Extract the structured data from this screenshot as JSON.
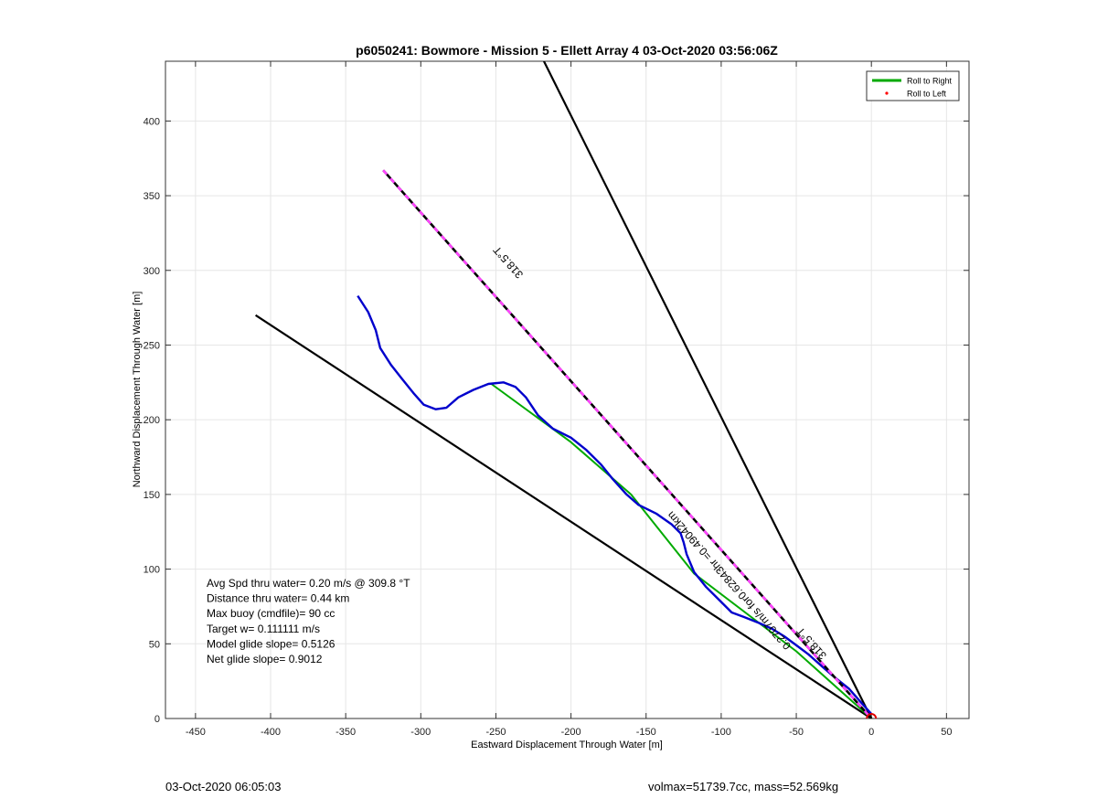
{
  "footer": {
    "date": "03-Oct-2020 06:05:03",
    "mass_info": "volmax=51739.7cc, mass=52.569kg"
  },
  "chart_data": {
    "type": "line",
    "title": "p6050241: Bowmore - Mission 5 - Ellett Array 4 03-Oct-2020 03:56:06Z",
    "xlabel": "Eastward Displacement Through Water [m]",
    "ylabel": "Northward Displacement Through Water [m]",
    "xlim": [
      -470,
      65
    ],
    "ylim": [
      0,
      440
    ],
    "xticks": [
      -450,
      -400,
      -350,
      -300,
      -250,
      -200,
      -150,
      -100,
      -50,
      0,
      50
    ],
    "yticks": [
      0,
      50,
      100,
      150,
      200,
      250,
      300,
      350,
      400
    ],
    "grid": true,
    "legend": {
      "position": "top-right",
      "entries": [
        {
          "label": "Roll to Right",
          "color": "#00aa00",
          "style": "line"
        },
        {
          "label": "Roll to Left",
          "color": "#ff0000",
          "style": "dot"
        }
      ]
    },
    "series": [
      {
        "name": "Roll to Right",
        "color": "#00aa00",
        "points": [
          [
            -253,
            224
          ],
          [
            -200,
            185
          ],
          [
            -160,
            150
          ],
          [
            -118,
            97
          ],
          [
            -50,
            45
          ],
          [
            0,
            0
          ]
        ]
      },
      {
        "color": "#0000cc",
        "points": [
          [
            -342,
            283
          ],
          [
            -335,
            272
          ],
          [
            -330,
            260
          ],
          [
            -327,
            248
          ],
          [
            -320,
            237
          ],
          [
            -313,
            228
          ],
          [
            -305,
            218
          ],
          [
            -298,
            210
          ],
          [
            -290,
            207
          ],
          [
            -283,
            208
          ],
          [
            -275,
            215
          ],
          [
            -265,
            220
          ],
          [
            -255,
            224
          ],
          [
            -245,
            225
          ],
          [
            -237,
            222
          ],
          [
            -230,
            215
          ],
          [
            -222,
            203
          ],
          [
            -212,
            194
          ],
          [
            -200,
            188
          ],
          [
            -190,
            180
          ],
          [
            -180,
            170
          ],
          [
            -172,
            160
          ],
          [
            -163,
            150
          ],
          [
            -155,
            143
          ],
          [
            -143,
            137
          ],
          [
            -133,
            130
          ],
          [
            -127,
            124
          ],
          [
            -125,
            118
          ],
          [
            -123,
            110
          ],
          [
            -118,
            98
          ],
          [
            -110,
            88
          ],
          [
            -100,
            78
          ],
          [
            -93,
            71
          ],
          [
            -85,
            68
          ],
          [
            -75,
            64
          ],
          [
            -66,
            60
          ],
          [
            -58,
            55
          ],
          [
            -50,
            49
          ],
          [
            -42,
            43
          ],
          [
            -33,
            35
          ],
          [
            -25,
            28
          ],
          [
            -15,
            20
          ],
          [
            -8,
            12
          ],
          [
            0,
            3
          ]
        ]
      },
      {
        "color": "#ff44ff",
        "dashed": true,
        "points": [
          [
            -325,
            367
          ],
          [
            0,
            0
          ]
        ]
      },
      {
        "color": "#000000",
        "points": [
          [
            -410,
            270
          ],
          [
            0,
            0
          ]
        ]
      },
      {
        "color": "#000000",
        "points": [
          [
            -218,
            440
          ],
          [
            0,
            0
          ]
        ]
      }
    ],
    "marker": {
      "x": 0,
      "y": 0,
      "color": "#dd0000",
      "shape": "circle"
    },
    "annotations": [
      {
        "text": "318.5°T",
        "x": -240,
        "y": 307,
        "angle": 228.5
      },
      {
        "text": "0.2707m/s for0.62843hr =0.49042km",
        "x": -93,
        "y": 94,
        "angle": 228.5
      },
      {
        "text": "318.5°T",
        "x": -38,
        "y": 52,
        "angle": 228.5
      }
    ],
    "stats": {
      "lines": [
        "Avg Spd thru water=  0.20 m/s @ 309.8 °T",
        "Distance thru water=  0.44 km",
        "Max buoy (cmdfile)= 90 cc",
        "Target w= 0.111111 m/s",
        "Model glide slope= 0.5126",
        "Net glide slope= 0.9012"
      ]
    }
  }
}
